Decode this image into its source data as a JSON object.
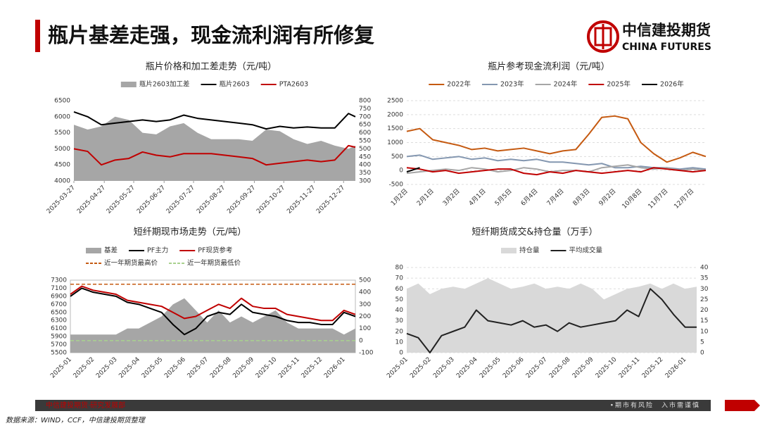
{
  "header": {
    "title": "瓶片基差走强，现金流利润有所修复",
    "logo_cn": "中信建投期货",
    "logo_en": "CHINA FUTURES"
  },
  "footer": {
    "left": "中信建投期货·研究发展部",
    "right": "•期市有风险　入市需谨慎",
    "source": "数据来源：WIND，CCF，中信建投期货整理"
  },
  "chart_data": [
    {
      "type": "line",
      "title": "瓶片价格和加工差走势（元/吨）",
      "x": [
        "2025-03-27",
        "2025-04-10",
        "2025-04-24",
        "2025-05-08",
        "2025-05-22",
        "2025-06-05",
        "2025-06-19",
        "2025-07-03",
        "2025-07-17",
        "2025-07-31",
        "2025-08-14",
        "2025-08-28",
        "2025-09-11",
        "2025-09-25",
        "2025-10-09",
        "2025-10-23",
        "2025-11-06",
        "2025-11-20",
        "2025-12-04",
        "2025-12-18",
        "2026-01-01",
        "2026-01-08"
      ],
      "xlim": [
        "2025-03-27",
        "2026-01-08"
      ],
      "xticks": [
        "2025-03-27",
        "2025-04-27",
        "2025-05-27",
        "2025-06-27",
        "2025-07-27",
        "2025-08-27",
        "2025-09-27",
        "2025-10-27",
        "2025-11-27",
        "2025-12-27"
      ],
      "ylim": [
        4000,
        6500
      ],
      "yticks": [
        4000,
        4500,
        5000,
        5500,
        6000,
        6500
      ],
      "y2lim": [
        300,
        800
      ],
      "y2ticks": [
        300,
        350,
        400,
        450,
        500,
        550,
        600,
        650,
        700,
        750,
        800
      ],
      "series": [
        {
          "name": "瓶片2603加工差",
          "type": "area",
          "axis": "y2",
          "color": "#a6a6a6",
          "values": [
            650,
            620,
            640,
            700,
            680,
            600,
            590,
            640,
            660,
            600,
            560,
            560,
            560,
            550,
            620,
            610,
            560,
            530,
            550,
            520,
            500,
            520
          ]
        },
        {
          "name": "瓶片2603",
          "type": "line",
          "color": "#000000",
          "values": [
            6150,
            6000,
            5750,
            5800,
            5850,
            5900,
            5850,
            5900,
            6050,
            5950,
            5900,
            5850,
            5800,
            5750,
            5620,
            5700,
            5650,
            5680,
            5650,
            5650,
            6100,
            6000
          ]
        },
        {
          "name": "PTA2603",
          "type": "line",
          "color": "#c00000",
          "values": [
            5000,
            4920,
            4500,
            4650,
            4700,
            4900,
            4800,
            4750,
            4850,
            4850,
            4850,
            4800,
            4750,
            4700,
            4500,
            4550,
            4600,
            4650,
            4600,
            4650,
            5100,
            5050
          ]
        }
      ]
    },
    {
      "type": "line",
      "title": "瓶片参考现金流利润（元/吨）",
      "grid": true,
      "categories": [
        "1月2日",
        null,
        "2月1日",
        null,
        "3月2日",
        null,
        "4月1日",
        null,
        "5月5日",
        null,
        "6月4日",
        null,
        "7月4日",
        null,
        "8月3日",
        null,
        "9月2日",
        null,
        "10月8日",
        null,
        "11月7日",
        null,
        "12月7日",
        null
      ],
      "ylim": [
        -500,
        2500
      ],
      "yticks": [
        -500,
        0,
        500,
        1000,
        1500,
        2000,
        2500
      ],
      "series": [
        {
          "name": "2022年",
          "type": "line",
          "color": "#c55a11",
          "values": [
            1400,
            1500,
            1100,
            1000,
            900,
            750,
            800,
            700,
            750,
            800,
            700,
            600,
            700,
            750,
            1300,
            1900,
            1950,
            1850,
            1000,
            600,
            300,
            450,
            650,
            500
          ]
        },
        {
          "name": "2023年",
          "type": "line",
          "color": "#8497b0",
          "values": [
            500,
            550,
            400,
            450,
            500,
            400,
            450,
            350,
            400,
            350,
            400,
            300,
            300,
            250,
            200,
            250,
            100,
            100,
            150,
            100,
            100,
            50,
            100,
            50
          ]
        },
        {
          "name": "2024年",
          "type": "line",
          "color": "#a6a6a6",
          "values": [
            -100,
            -50,
            0,
            50,
            0,
            100,
            50,
            -50,
            0,
            100,
            50,
            -50,
            0,
            0,
            -50,
            100,
            150,
            200,
            100,
            50,
            100,
            0,
            50,
            0
          ]
        },
        {
          "name": "2025年",
          "type": "line",
          "color": "#c00000",
          "values": [
            100,
            50,
            -50,
            0,
            -100,
            -50,
            0,
            50,
            50,
            -100,
            -150,
            -50,
            -100,
            0,
            -50,
            -100,
            -50,
            0,
            -50,
            100,
            50,
            0,
            -50,
            0
          ]
        },
        {
          "name": "2026年",
          "type": "line",
          "color": "#000000",
          "values": [
            -50,
            100,
            null,
            null,
            null,
            null,
            null,
            null,
            null,
            null,
            null,
            null,
            null,
            null,
            null,
            null,
            null,
            null,
            null,
            null,
            null,
            null,
            null,
            null
          ]
        }
      ]
    },
    {
      "type": "line",
      "title": "短纤期现市场走势（元/吨）",
      "categories": [
        "2025-01",
        null,
        "2025-02",
        null,
        "2025-03",
        null,
        "2025-04",
        null,
        "2025-05",
        null,
        "2025-06",
        null,
        "2025-07",
        null,
        "2025-08",
        null,
        "2025-09",
        null,
        "2025-10",
        null,
        "2025-11",
        null,
        "2025-12",
        null,
        "2026-01",
        null
      ],
      "ylim": [
        5500,
        7300
      ],
      "yticks": [
        5500,
        5700,
        5900,
        6100,
        6300,
        6500,
        6700,
        6900,
        7100,
        7300
      ],
      "y2lim": [
        -100,
        500
      ],
      "y2ticks": [
        -100,
        0,
        100,
        200,
        300,
        400,
        500
      ],
      "series": [
        {
          "name": "基差",
          "type": "area",
          "axis": "y2",
          "color": "#a6a6a6",
          "values": [
            50,
            50,
            50,
            50,
            50,
            100,
            100,
            150,
            200,
            300,
            350,
            250,
            150,
            250,
            150,
            200,
            150,
            200,
            250,
            150,
            100,
            100,
            100,
            100,
            50,
            100
          ]
        },
        {
          "name": "PF主力",
          "type": "line",
          "color": "#000000",
          "values": [
            6900,
            7100,
            7000,
            6950,
            6900,
            6750,
            6700,
            6600,
            6500,
            6200,
            5950,
            6100,
            6400,
            6500,
            6450,
            6700,
            6500,
            6450,
            6400,
            6300,
            6250,
            6250,
            6200,
            6200,
            6500,
            6400
          ]
        },
        {
          "name": "PF现货参考",
          "type": "line",
          "color": "#c00000",
          "values": [
            6950,
            7150,
            7050,
            7000,
            6950,
            6800,
            6750,
            6700,
            6650,
            6500,
            6350,
            6400,
            6550,
            6700,
            6600,
            6850,
            6650,
            6600,
            6600,
            6450,
            6400,
            6350,
            6300,
            6300,
            6550,
            6450
          ]
        },
        {
          "name": "近一年期货最高价",
          "type": "hline",
          "color": "#c55a11",
          "value": 7200
        },
        {
          "name": "近一年期货最低价",
          "type": "hline",
          "color": "#a9d18e",
          "value": 5800
        }
      ]
    },
    {
      "type": "line",
      "title": "短纤期货成交&持仓量（万手）",
      "grid": true,
      "categories": [
        "2025-01",
        null,
        "2025-02",
        null,
        "2025-03",
        null,
        "2025-04",
        null,
        "2025-05",
        null,
        "2025-06",
        null,
        "2025-07",
        null,
        "2025-08",
        null,
        "2025-09",
        null,
        "2025-10",
        null,
        "2025-11",
        null,
        "2025-12",
        null,
        "2026-01",
        null
      ],
      "ylim": [
        0,
        80
      ],
      "yticks": [
        0,
        10,
        20,
        30,
        40,
        50,
        60,
        70,
        80
      ],
      "y2lim": [
        0,
        40
      ],
      "y2ticks": [
        0,
        5,
        10,
        15,
        20,
        25,
        30,
        35,
        40
      ],
      "series": [
        {
          "name": "持仓量",
          "type": "area",
          "color": "#d9d9d9",
          "values": [
            60,
            65,
            55,
            60,
            62,
            60,
            65,
            70,
            65,
            60,
            62,
            65,
            60,
            62,
            60,
            65,
            60,
            50,
            55,
            60,
            62,
            65,
            60,
            65,
            60,
            62
          ]
        },
        {
          "name": "平均成交量",
          "type": "line",
          "axis": "y2",
          "color": "#222222",
          "values": [
            9,
            7,
            0,
            8,
            10,
            12,
            20,
            15,
            14,
            13,
            15,
            12,
            13,
            10,
            14,
            12,
            13,
            14,
            15,
            20,
            17,
            30,
            25,
            18,
            12,
            12
          ]
        }
      ]
    }
  ]
}
